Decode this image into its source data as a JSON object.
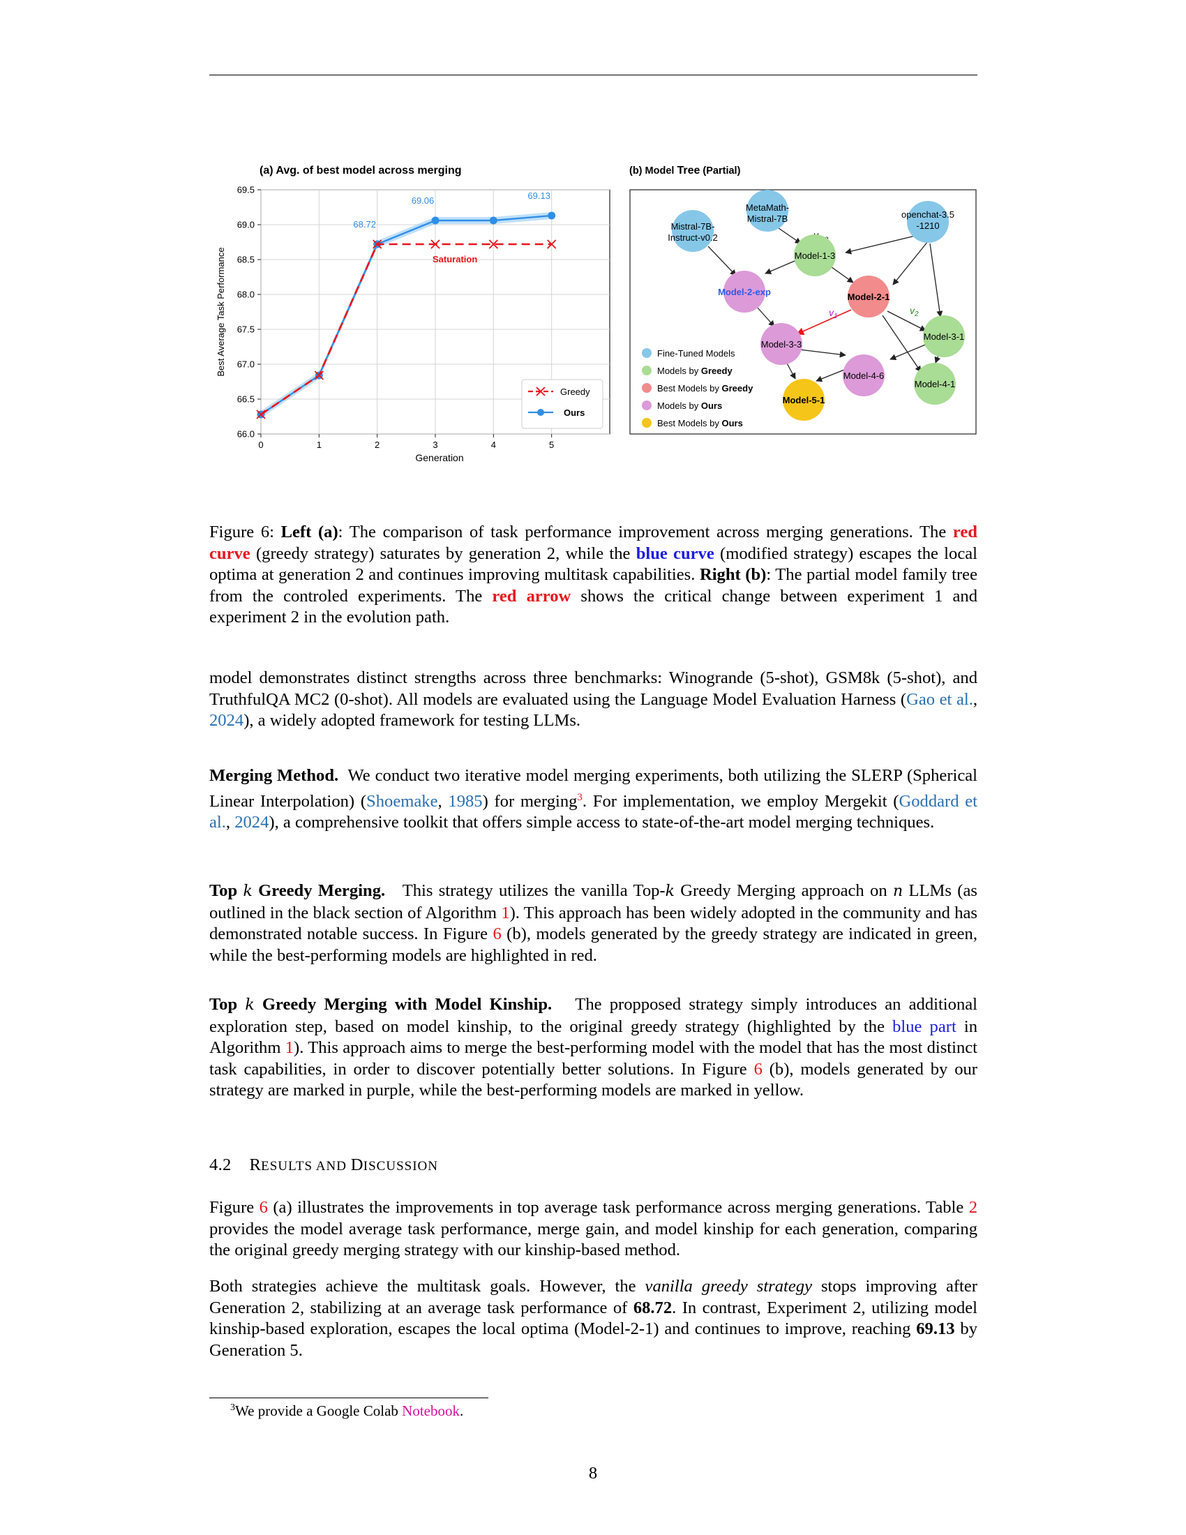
{
  "chart_data": [
    {
      "type": "line",
      "title": "(a) Avg. of best model across merging",
      "xlabel": "Generation",
      "ylabel": "Best Average Task Performance",
      "x": [
        0,
        1,
        2,
        3,
        4,
        5
      ],
      "xticks": [
        "0",
        "1",
        "2",
        "3",
        "4",
        "5"
      ],
      "yticks": [
        "66.0",
        "66.5",
        "67.0",
        "67.5",
        "68.0",
        "68.5",
        "69.0",
        "69.5"
      ],
      "xlim": [
        0,
        6
      ],
      "ylim": [
        66.0,
        69.5
      ],
      "grid": true,
      "legend_position": "lower-right",
      "series": [
        {
          "name": "Greedy",
          "values": [
            66.28,
            66.84,
            68.72,
            68.72,
            68.72,
            68.72
          ],
          "color": "#e8141c",
          "style": "dashed",
          "marker": "x"
        },
        {
          "name": "Ours",
          "values": [
            66.28,
            66.84,
            68.72,
            69.06,
            69.06,
            69.13
          ],
          "color": "#2f8fe6",
          "style": "solid",
          "marker": "circle"
        }
      ],
      "data_labels": [
        {
          "x": 2,
          "text": "68.72"
        },
        {
          "x": 3,
          "text": "69.06"
        },
        {
          "x": 5,
          "text": "69.13"
        }
      ],
      "annotations": [
        {
          "text": "Saturation",
          "color": "#e8141c"
        }
      ]
    }
  ],
  "diagram": {
    "title_prefix": "(b) Model ",
    "title_main": "Tree",
    "title_suffix": " (Partial)",
    "nodes": {
      "mistral_l1": "Mistral-7B-",
      "mistral_l2": "Instruct-v0.2",
      "metamath_l1": "MetaMath-",
      "metamath_l2": "Mistral-7B",
      "openchat_l1": "openchat-3.5",
      "openchat_l2": "-1210",
      "model_1_3": "Model-1-3",
      "model_2_exp": "Model-2-exp",
      "model_2_1": "Model-2-1",
      "model_3_3": "Model-3-3",
      "model_3_1": "Model-3-1",
      "model_4_6": "Model-4-6",
      "model_4_1": "Model-4-1",
      "model_5_1": "Model-5-1"
    },
    "edge_labels": {
      "v_pre": "v",
      "v_pre_sub": "pre",
      "v1": "v",
      "v1_sub": "1",
      "v2": "v",
      "v2_sub": "2"
    },
    "legend": {
      "fine_tuned": "Fine-Tuned Models",
      "greedy_prefix": "Models by ",
      "greedy_bold": "Greedy",
      "best_greedy_prefix": "Best Models by ",
      "best_greedy_bold": "Greedy",
      "ours_prefix": "Models by ",
      "ours_bold": "Ours",
      "best_ours_prefix": "Best Models by ",
      "best_ours_bold": "Ours"
    },
    "colors": {
      "fine_tuned": "#86c7e8",
      "greedy": "#a9dc95",
      "best_greedy": "#f28b8b",
      "ours": "#dc9ad8",
      "best_ours": "#f6c519"
    }
  },
  "caption": {
    "p1": "Figure 6: ",
    "p2": "Left (a)",
    "p3": ": The comparison of task performance improvement across merging generations. The ",
    "p4": "red curve",
    "p5": " (greedy strategy) saturates by generation 2, while the ",
    "p6": "blue curve",
    "p7": " (modified strategy) escapes the local optima at generation 2 and continues improving multitask capabilities. ",
    "p8": "Right (b)",
    "p9": ": The partial model family tree from the controled experiments.  The ",
    "p10": "red arrow",
    "p11": " shows the critical change between experiment 1 and experiment 2 in the evolution path."
  },
  "para1": {
    "a": "model demonstrates distinct strengths across three benchmarks: Winogrande (5-shot), GSM8k (5-shot), and TruthfulQA MC2 (0-shot). All models are evaluated using the Language Model Evaluation Harness (",
    "cite_author": "Gao et al.",
    "sep": ", ",
    "cite_year": "2024",
    "b": "), a widely adopted framework for testing LLMs."
  },
  "merging": {
    "head": "Merging Method.",
    "a": "  We conduct two iterative model merging experiments, both utilizing the SLERP (Spherical Linear Interpolation) (",
    "cite_author": "Shoemake",
    "sep": ", ",
    "cite_year": "1985",
    "b": ") for merging",
    "fn_mark": "3",
    "c": ". For implementation, we employ Mergekit (",
    "cite2_author": "Goddard et al.",
    "sep2": ", ",
    "cite2_year": "2024",
    "d": "), a comprehensive toolkit that offers simple access to state-of-the-art model merging techniques."
  },
  "greedy": {
    "head_a": "Top ",
    "head_k": "k",
    "head_b": " Greedy Merging.",
    "a": "   This strategy utilizes the vanilla Top-",
    "k": "k",
    "b": " Greedy Merging approach on ",
    "n": "n",
    "c": " LLMs (as outlined in the black section of Algorithm ",
    "alg_ref": "1",
    "d": ").  This approach has been widely adopted in the community and has demonstrated notable success.  In Figure ",
    "fig_ref": "6",
    "e": " (b), models generated by the greedy strategy are indicated in green, while the best-performing models are highlighted in red."
  },
  "kinship": {
    "head_a": "Top ",
    "head_k": "k",
    "head_b": " Greedy Merging with Model Kinship.",
    "a": "   The propposed strategy simply introduces an additional exploration step, based on model kinship, to the original greedy strategy (highlighted by the ",
    "blue_part": "blue part",
    "b": " in Algorithm ",
    "alg_ref": "1",
    "c": "). This approach aims to merge the best-performing model with the model that has the most distinct task capabilities, in order to discover potentially better solutions. In Figure ",
    "fig_ref": "6",
    "d": " (b), models generated by our strategy are marked in purple, while the best-performing models are marked in yellow."
  },
  "section": {
    "number": "4.2",
    "title_r": "R",
    "title_esults": "ESULTS AND ",
    "title_d": "D",
    "title_iscussion": "ISCUSSION"
  },
  "results": {
    "a": "Figure ",
    "fig_ref": "6",
    "b": " (a) illustrates the improvements in top average task performance across merging generations. Table ",
    "table_ref": "2",
    "c": " provides the model average task performance, merge gain, and model kinship for each generation, comparing the original greedy merging strategy with our kinship-based method."
  },
  "both": {
    "a": "Both strategies achieve the multitask goals.  However, the ",
    "italic": "vanilla greedy strategy",
    "b": " stops improving after Generation 2, stabilizing at an average task performance of ",
    "val1": "68.72",
    "c": ".  In contrast, Experiment 2, utilizing model kinship-based exploration, escapes the local optima (Model-2-1) and continues to improve, reaching ",
    "val2": "69.13",
    "d": " by Generation 5."
  },
  "footnote": {
    "mark": "3",
    "text": "We provide a Google Colab ",
    "link": "Notebook",
    "end": "."
  },
  "page_number": "8"
}
